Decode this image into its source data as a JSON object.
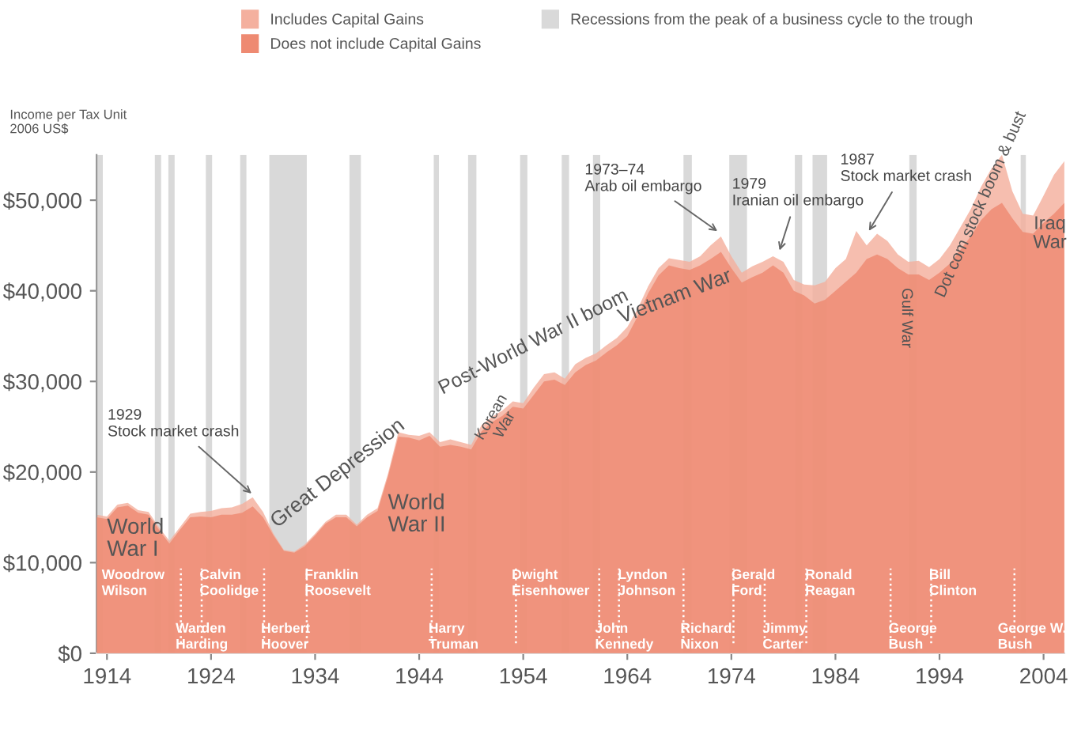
{
  "chart_data": {
    "type": "area",
    "ylabel": "Income per Tax Unit\n2006 US$",
    "x": [
      1913,
      1914,
      1915,
      1916,
      1917,
      1918,
      1919,
      1920,
      1921,
      1922,
      1923,
      1924,
      1925,
      1926,
      1927,
      1928,
      1929,
      1930,
      1931,
      1932,
      1933,
      1934,
      1935,
      1936,
      1937,
      1938,
      1939,
      1940,
      1941,
      1942,
      1943,
      1944,
      1945,
      1946,
      1947,
      1948,
      1949,
      1950,
      1951,
      1952,
      1953,
      1954,
      1955,
      1956,
      1957,
      1958,
      1959,
      1960,
      1961,
      1962,
      1963,
      1964,
      1965,
      1966,
      1967,
      1968,
      1969,
      1970,
      1971,
      1972,
      1973,
      1974,
      1975,
      1976,
      1977,
      1978,
      1979,
      1980,
      1981,
      1982,
      1983,
      1984,
      1985,
      1986,
      1987,
      1988,
      1989,
      1990,
      1991,
      1992,
      1993,
      1994,
      1995,
      1996,
      1997,
      1998,
      1999,
      2000,
      2001,
      2002,
      2003,
      2004,
      2005,
      2006
    ],
    "series": [
      {
        "name": "Includes Capital Gains",
        "color": "#f4b09e",
        "values": [
          15300,
          15100,
          16400,
          16600,
          15800,
          15600,
          13900,
          12400,
          13900,
          15400,
          15600,
          15700,
          16000,
          16100,
          16500,
          17200,
          15600,
          13200,
          11400,
          11200,
          12000,
          13200,
          14500,
          15300,
          15300,
          14200,
          15300,
          16000,
          19800,
          24400,
          24100,
          24000,
          24400,
          23300,
          23600,
          23300,
          23000,
          25200,
          26100,
          26800,
          27800,
          27600,
          29300,
          30800,
          31000,
          30300,
          31900,
          32600,
          33100,
          34000,
          34800,
          36000,
          38000,
          40500,
          42500,
          43600,
          43400,
          43200,
          43800,
          45000,
          46000,
          43800,
          42000,
          42700,
          43200,
          43800,
          43200,
          41200,
          40700,
          40600,
          41000,
          42500,
          43500,
          46600,
          45000,
          46300,
          45500,
          44000,
          43200,
          43300,
          42600,
          43500,
          45000,
          47000,
          49000,
          51500,
          53500,
          55000,
          51000,
          48500,
          48300,
          50500,
          52800,
          54300
        ]
      },
      {
        "name": "Does not include Capital Gains",
        "color": "#ee8a72",
        "values": [
          15000,
          14800,
          16100,
          16300,
          15500,
          15300,
          13600,
          12100,
          13600,
          15000,
          15100,
          15000,
          15300,
          15300,
          15500,
          16200,
          15000,
          13000,
          11300,
          11100,
          11800,
          13000,
          14300,
          15000,
          15000,
          14000,
          15000,
          15700,
          19500,
          23900,
          23800,
          23500,
          24000,
          22800,
          23000,
          22800,
          22500,
          24500,
          25500,
          26200,
          27200,
          27000,
          28500,
          30000,
          30200,
          29600,
          31000,
          31800,
          32300,
          33200,
          34000,
          35000,
          37200,
          39700,
          41700,
          42800,
          42500,
          42300,
          42800,
          43500,
          44300,
          42500,
          40900,
          41500,
          42000,
          42800,
          42000,
          40000,
          39500,
          38600,
          39000,
          40000,
          41000,
          42000,
          43500,
          44000,
          43500,
          42500,
          41800,
          41800,
          41200,
          42000,
          43000,
          44500,
          46000,
          47800,
          49000,
          49700,
          48000,
          46500,
          46300,
          47500,
          48500,
          49700
        ]
      }
    ],
    "xlim": [
      1913,
      2006
    ],
    "ylim": [
      0,
      55000
    ],
    "xticks": [
      1914,
      1924,
      1934,
      1944,
      1954,
      1964,
      1974,
      1984,
      1994,
      2004
    ],
    "yticks": [
      {
        "value": 0,
        "label": "$0"
      },
      {
        "value": 10000,
        "label": "$10,000"
      },
      {
        "value": 20000,
        "label": "$20,000"
      },
      {
        "value": 30000,
        "label": "$30,000"
      },
      {
        "value": 40000,
        "label": "$40,000"
      },
      {
        "value": 50000,
        "label": "$50,000"
      }
    ],
    "bands": [
      {
        "axis": "x",
        "from": 1913.0,
        "to": 1913.6,
        "label": "Recessions from the peak of a business cycle to the trough",
        "color": "#d9d9d9"
      },
      {
        "axis": "x",
        "from": 1918.6,
        "to": 1919.2,
        "color": "#d9d9d9"
      },
      {
        "axis": "x",
        "from": 1919.9,
        "to": 1920.5,
        "color": "#d9d9d9"
      },
      {
        "axis": "x",
        "from": 1923.5,
        "to": 1924.1,
        "color": "#d9d9d9"
      },
      {
        "axis": "x",
        "from": 1926.8,
        "to": 1927.4,
        "color": "#d9d9d9"
      },
      {
        "axis": "x",
        "from": 1929.6,
        "to": 1933.2,
        "color": "#d9d9d9"
      },
      {
        "axis": "x",
        "from": 1937.3,
        "to": 1938.4,
        "color": "#d9d9d9"
      },
      {
        "axis": "x",
        "from": 1945.4,
        "to": 1945.9,
        "color": "#d9d9d9"
      },
      {
        "axis": "x",
        "from": 1948.7,
        "to": 1949.5,
        "color": "#d9d9d9"
      },
      {
        "axis": "x",
        "from": 1953.7,
        "to": 1954.4,
        "color": "#d9d9d9"
      },
      {
        "axis": "x",
        "from": 1957.7,
        "to": 1958.4,
        "color": "#d9d9d9"
      },
      {
        "axis": "x",
        "from": 1960.7,
        "to": 1961.4,
        "color": "#d9d9d9"
      },
      {
        "axis": "x",
        "from": 1969.4,
        "to": 1970.2,
        "color": "#d9d9d9"
      },
      {
        "axis": "x",
        "from": 1973.8,
        "to": 1975.5,
        "color": "#d9d9d9"
      },
      {
        "axis": "x",
        "from": 1980.1,
        "to": 1980.8,
        "color": "#d9d9d9"
      },
      {
        "axis": "x",
        "from": 1981.8,
        "to": 1983.2,
        "color": "#d9d9d9"
      },
      {
        "axis": "x",
        "from": 1991.1,
        "to": 1991.8,
        "color": "#d9d9d9"
      },
      {
        "axis": "x",
        "from": 2001.8,
        "to": 2002.3,
        "color": "#d9d9d9"
      }
    ],
    "ref_lines": [
      {
        "axis": "x",
        "value": 1921.1,
        "color": "#ffffff",
        "line_style": "dotted"
      },
      {
        "axis": "x",
        "value": 1923.1,
        "color": "#ffffff",
        "line_style": "dotted"
      },
      {
        "axis": "x",
        "value": 1929.1,
        "color": "#ffffff",
        "line_style": "dotted"
      },
      {
        "axis": "x",
        "value": 1933.2,
        "color": "#ffffff",
        "line_style": "dotted"
      },
      {
        "axis": "x",
        "value": 1945.2,
        "color": "#ffffff",
        "line_style": "dotted"
      },
      {
        "axis": "x",
        "value": 1953.3,
        "color": "#ffffff",
        "line_style": "dotted"
      },
      {
        "axis": "x",
        "value": 1961.3,
        "color": "#ffffff",
        "line_style": "dotted"
      },
      {
        "axis": "x",
        "value": 1963.2,
        "color": "#ffffff",
        "line_style": "dotted"
      },
      {
        "axis": "x",
        "value": 1969.4,
        "color": "#ffffff",
        "line_style": "dotted"
      },
      {
        "axis": "x",
        "value": 1974.2,
        "color": "#ffffff",
        "line_style": "dotted"
      },
      {
        "axis": "x",
        "value": 1977.2,
        "color": "#ffffff",
        "line_style": "dotted"
      },
      {
        "axis": "x",
        "value": 1981.2,
        "color": "#ffffff",
        "line_style": "dotted"
      },
      {
        "axis": "x",
        "value": 1989.3,
        "color": "#ffffff",
        "line_style": "dotted"
      },
      {
        "axis": "x",
        "value": 1993.2,
        "color": "#ffffff",
        "line_style": "dotted"
      },
      {
        "axis": "x",
        "value": 2001.2,
        "color": "#ffffff",
        "line_style": "dotted"
      }
    ],
    "annotations": [
      "World\nWar I",
      {
        "text": "1929\nStock market crash",
        "x": 1928.2,
        "y": 17300
      },
      "Great Depression",
      "World\nWar II",
      "Korean\nWar",
      "Post-World War II boom",
      "Vietnam War",
      {
        "text": "1973–74\nArab oil embargo",
        "x": 1973,
        "y": 46300
      },
      {
        "text": "1979\nIranian oil embargo",
        "x": 1978.5,
        "y": 44000
      },
      {
        "text": "1987\nStock market crash",
        "x": 1987,
        "y": 46200
      },
      "Gulf War",
      "Dot com stock boom & bust",
      "Iraq\nWar",
      {
        "text": "Woodrow\nWilson",
        "x": 1913.5,
        "y": 9300
      },
      {
        "text": "Warden\nHarding",
        "x": 1920.6,
        "y": 200
      },
      {
        "text": "Calvin\nCoolidge",
        "x": 1922.9,
        "y": 9300
      },
      {
        "text": "Herbert\nHoover",
        "x": 1928.8,
        "y": 200
      },
      {
        "text": "Franklin\nRoosevelt",
        "x": 1933.0,
        "y": 9300
      },
      {
        "text": "Harry\nTruman",
        "x": 1944.9,
        "y": 200
      },
      {
        "text": "Dwight\nEisenhower",
        "x": 1952.9,
        "y": 9300
      },
      {
        "text": "John\nKennedy",
        "x": 1960.9,
        "y": 200
      },
      {
        "text": "Lyndon\nJohnson",
        "x": 1963.1,
        "y": 9300
      },
      {
        "text": "Richard\nNixon",
        "x": 1969.1,
        "y": 200
      },
      {
        "text": "Gerald\nFord",
        "x": 1974.0,
        "y": 9300
      },
      {
        "text": "Jimmy\nCarter",
        "x": 1977.0,
        "y": 200
      },
      {
        "text": "Ronald\nReagan",
        "x": 1981.1,
        "y": 9300
      },
      {
        "text": "George\nBush",
        "x": 1989.1,
        "y": 200
      },
      {
        "text": "Bill\nClinton",
        "x": 1993.0,
        "y": 9300
      },
      {
        "text": "George W.\nBush",
        "x": 1999.6,
        "y": 200
      }
    ],
    "legend": "top"
  }
}
